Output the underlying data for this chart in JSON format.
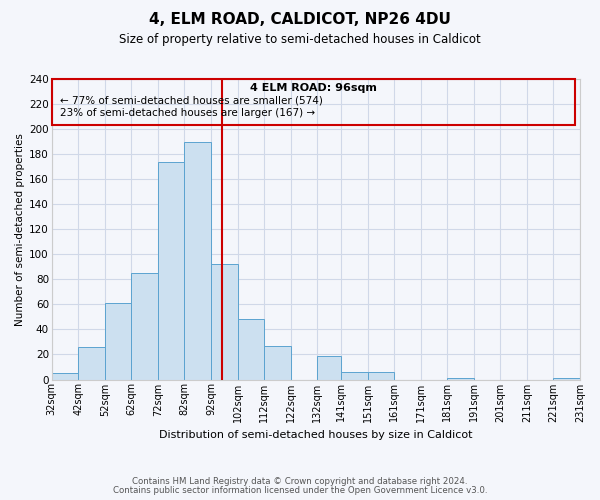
{
  "title": "4, ELM ROAD, CALDICOT, NP26 4DU",
  "subtitle": "Size of property relative to semi-detached houses in Caldicot",
  "xlabel": "Distribution of semi-detached houses by size in Caldicot",
  "ylabel": "Number of semi-detached properties",
  "bin_labels": [
    "32sqm",
    "42sqm",
    "52sqm",
    "62sqm",
    "72sqm",
    "82sqm",
    "92sqm",
    "102sqm",
    "112sqm",
    "122sqm",
    "132sqm",
    "141sqm",
    "151sqm",
    "161sqm",
    "171sqm",
    "181sqm",
    "191sqm",
    "201sqm",
    "211sqm",
    "221sqm",
    "231sqm"
  ],
  "bin_edges": [
    32,
    42,
    52,
    62,
    72,
    82,
    92,
    102,
    112,
    122,
    132,
    141,
    151,
    161,
    171,
    181,
    191,
    201,
    211,
    221,
    231
  ],
  "counts": [
    5,
    26,
    61,
    85,
    174,
    190,
    92,
    48,
    27,
    0,
    19,
    6,
    6,
    0,
    0,
    1,
    0,
    0,
    0,
    1
  ],
  "bar_facecolor": "#cce0f0",
  "bar_edgecolor": "#5ba3d0",
  "property_size": 96,
  "vline_color": "#cc0000",
  "box_text_line1": "4 ELM ROAD: 96sqm",
  "box_text_line2": "← 77% of semi-detached houses are smaller (574)",
  "box_text_line3": "23% of semi-detached houses are larger (167) →",
  "box_color": "#cc0000",
  "ylim": [
    0,
    240
  ],
  "yticks": [
    0,
    20,
    40,
    60,
    80,
    100,
    120,
    140,
    160,
    180,
    200,
    220,
    240
  ],
  "grid_color": "#d0d8e8",
  "footer_line1": "Contains HM Land Registry data © Crown copyright and database right 2024.",
  "footer_line2": "Contains public sector information licensed under the Open Government Licence v3.0.",
  "bg_color": "#f4f6fb"
}
